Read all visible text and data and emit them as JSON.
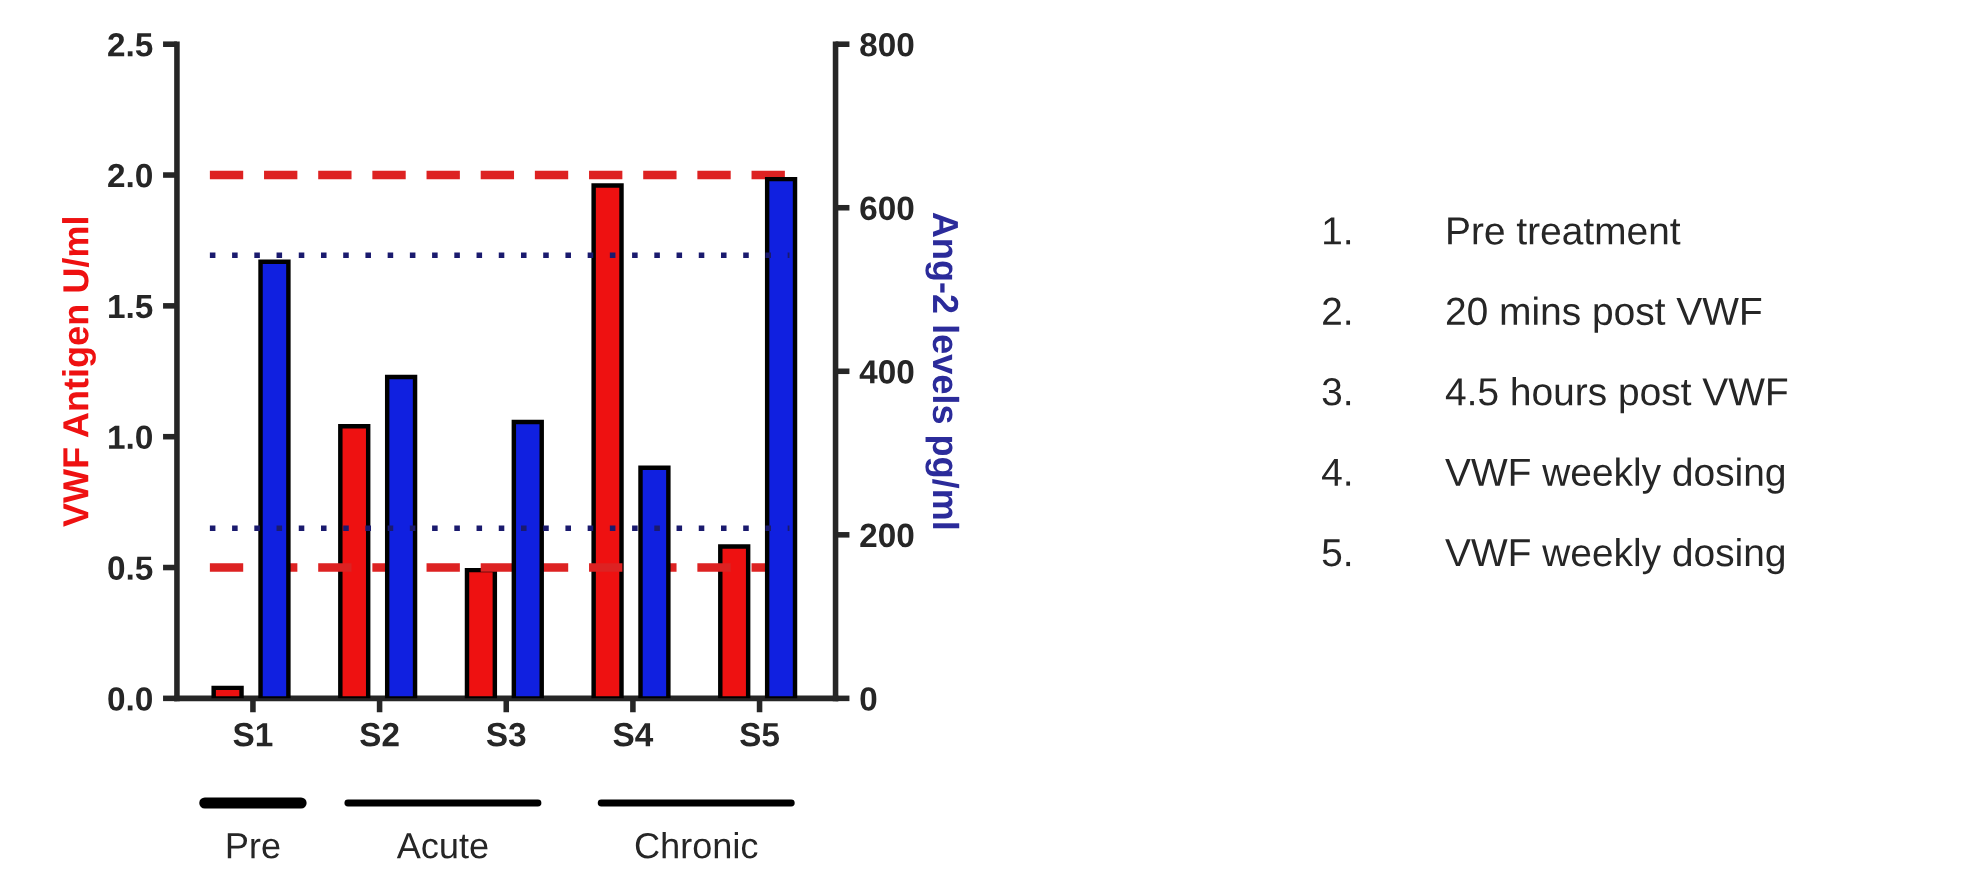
{
  "chart_data": {
    "type": "bar",
    "ylabel": "VWF Antigen U/ml",
    "y2label": "Ang-2 levels pg/ml",
    "categories": [
      "S1",
      "S2",
      "S3",
      "S4",
      "S5"
    ],
    "series": [
      {
        "color": "#ee1111",
        "values": [
          0.04,
          1.04,
          0.49,
          1.96,
          0.58
        ]
      },
      {
        "color": "#1020e0",
        "axis": "y2",
        "values": [
          534,
          393,
          338,
          282,
          635
        ]
      }
    ],
    "ylim": [
      0,
      2.5
    ],
    "yticks": [
      {
        "value": 0,
        "label": "0.0"
      },
      0.5,
      {
        "value": 1,
        "label": "1.0"
      },
      1.5,
      {
        "value": 2,
        "label": "2.0"
      },
      2.5
    ],
    "y2lim": [
      0,
      800
    ],
    "y2ticks": [
      0,
      200,
      400,
      600,
      800
    ],
    "ref_lines": [
      {
        "axis": "y",
        "value": 2.0,
        "color": "#dd2222",
        "line_style": "dashed"
      },
      {
        "axis": "y",
        "value": 0.5,
        "color": "#dd2222",
        "line_style": "dashed"
      },
      {
        "axis": "y2",
        "value": 542,
        "color": "#1a1a6e",
        "line_style": "dotted"
      },
      {
        "axis": "y2",
        "value": 208,
        "color": "#1a1a6e",
        "line_style": "dotted"
      }
    ],
    "annotations": [
      "Pre",
      "Acute",
      "Chronic",
      "1. Pre treatment",
      "2. 20 mins post VWF",
      "3. 4.5 hours post VWF",
      "4. VWF weekly dosing",
      "5. VWF weekly dosing"
    ],
    "grid": false,
    "legend": false
  }
}
